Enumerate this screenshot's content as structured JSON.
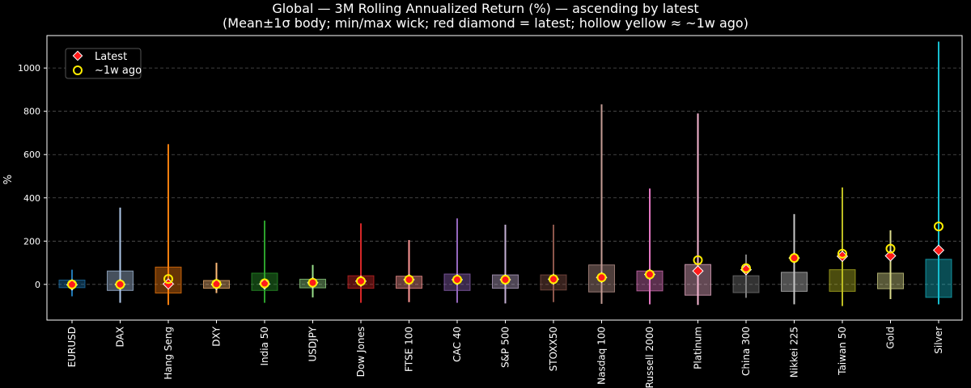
{
  "chart_data": {
    "type": "box",
    "title": "Global — 3M Rolling Annualized Return (%) — ascending by latest",
    "subtitle": "(Mean±1σ body; min/max wick; red diamond = latest; hollow yellow ≈ ~1w ago)",
    "ylabel": "%",
    "xlabel": "",
    "ylim": [
      -165,
      1150
    ],
    "yticks": [
      0,
      200,
      400,
      600,
      800,
      1000
    ],
    "grid": "y-dashed",
    "legend": {
      "placement": "top-left",
      "entries": [
        {
          "label": "Latest",
          "marker": "red-diamond",
          "color": "#ff1a1a"
        },
        {
          "label": "~1w ago",
          "marker": "hollow-yellow-circle",
          "color": "#ffee00"
        }
      ]
    },
    "categories": [
      "EURUSD",
      "DAX",
      "Hang Seng",
      "DXY",
      "India 50",
      "USDJPY",
      "Dow Jones",
      "FTSE 100",
      "CAC 40",
      "S&P 500",
      "STOXX50",
      "Nasdaq 100",
      "Russell 2000",
      "Platinum",
      "China 300",
      "Nikkei 225",
      "Taiwan 50",
      "Gold",
      "Silver"
    ],
    "series": [
      {
        "name": "EURUSD",
        "color": "#1f77b4",
        "mean": 2,
        "sd_low": -15,
        "sd_high": 20,
        "min": -55,
        "max": 68,
        "latest": -2,
        "week_ago": 0
      },
      {
        "name": "DAX",
        "color": "#aec7e8",
        "mean": 18,
        "sd_low": -28,
        "sd_high": 62,
        "min": -85,
        "max": 355,
        "latest": 0,
        "week_ago": 0
      },
      {
        "name": "Hang Seng",
        "color": "#ff7f0e",
        "mean": 20,
        "sd_low": -40,
        "sd_high": 80,
        "min": -95,
        "max": 648,
        "latest": 2,
        "week_ago": 25
      },
      {
        "name": "DXY",
        "color": "#ffbb78",
        "mean": 0,
        "sd_low": -18,
        "sd_high": 18,
        "min": -40,
        "max": 100,
        "latest": 0,
        "week_ago": 2
      },
      {
        "name": "India 50",
        "color": "#2ca02c",
        "mean": 12,
        "sd_low": -28,
        "sd_high": 52,
        "min": -85,
        "max": 295,
        "latest": 2,
        "week_ago": 5
      },
      {
        "name": "USDJPY",
        "color": "#98df8a",
        "mean": 4,
        "sd_low": -16,
        "sd_high": 24,
        "min": -60,
        "max": 90,
        "latest": 8,
        "week_ago": 8
      },
      {
        "name": "Dow Jones",
        "color": "#d62728",
        "mean": 11,
        "sd_low": -18,
        "sd_high": 40,
        "min": -85,
        "max": 282,
        "latest": 15,
        "week_ago": 15
      },
      {
        "name": "FTSE 100",
        "color": "#ff9896",
        "mean": 10,
        "sd_low": -18,
        "sd_high": 38,
        "min": -82,
        "max": 205,
        "latest": 22,
        "week_ago": 22
      },
      {
        "name": "CAC 40",
        "color": "#9467bd",
        "mean": 10,
        "sd_low": -28,
        "sd_high": 48,
        "min": -85,
        "max": 305,
        "latest": 22,
        "week_ago": 22
      },
      {
        "name": "S&P 500",
        "color": "#c5b0d5",
        "mean": 13,
        "sd_low": -18,
        "sd_high": 44,
        "min": -88,
        "max": 276,
        "latest": 22,
        "week_ago": 22
      },
      {
        "name": "STOXX50",
        "color": "#8c564b",
        "mean": 9,
        "sd_low": -26,
        "sd_high": 44,
        "min": -82,
        "max": 276,
        "latest": 24,
        "week_ago": 24
      },
      {
        "name": "Nasdaq 100",
        "color": "#c49c94",
        "mean": 28,
        "sd_low": -35,
        "sd_high": 90,
        "min": -90,
        "max": 832,
        "latest": 32,
        "week_ago": 32
      },
      {
        "name": "Russell 2000",
        "color": "#e377c2",
        "mean": 16,
        "sd_low": -30,
        "sd_high": 62,
        "min": -92,
        "max": 443,
        "latest": 46,
        "week_ago": 46
      },
      {
        "name": "Platinum",
        "color": "#f7b6d2",
        "mean": 21,
        "sd_low": -50,
        "sd_high": 92,
        "min": -95,
        "max": 790,
        "latest": 62,
        "week_ago": 112
      },
      {
        "name": "China 300",
        "color": "#7f7f7f",
        "mean": 2,
        "sd_low": -38,
        "sd_high": 40,
        "min": -62,
        "max": 138,
        "latest": 68,
        "week_ago": 75
      },
      {
        "name": "Nikkei 225",
        "color": "#c7c7c7",
        "mean": 12,
        "sd_low": -32,
        "sd_high": 56,
        "min": -92,
        "max": 325,
        "latest": 122,
        "week_ago": 122
      },
      {
        "name": "Taiwan 50",
        "color": "#bcbd22",
        "mean": 18,
        "sd_low": -32,
        "sd_high": 68,
        "min": -100,
        "max": 448,
        "latest": 130,
        "week_ago": 142
      },
      {
        "name": "Gold",
        "color": "#dbdb8d",
        "mean": 15,
        "sd_low": -20,
        "sd_high": 52,
        "min": -68,
        "max": 250,
        "latest": 132,
        "week_ago": 165
      },
      {
        "name": "Silver",
        "color": "#17becf",
        "mean": 28,
        "sd_low": -60,
        "sd_high": 116,
        "min": -92,
        "max": 1122,
        "latest": 158,
        "week_ago": 268
      }
    ]
  }
}
